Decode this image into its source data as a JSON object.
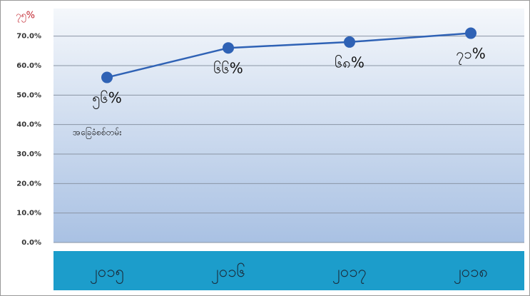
{
  "chart_data": {
    "type": "line",
    "annotation_top": "၇၅%",
    "annotation_note": "အခြေခံစစ်တမ်း",
    "categories": [
      "၂၀၁၅",
      "၂၀၁၆",
      "၂၀၁၇",
      "၂၀၁၈"
    ],
    "series": [
      {
        "color": "#2f62b5",
        "values": [
          56,
          66,
          68,
          71
        ],
        "value_labels": [
          "၅၆%",
          "၆၆%",
          "၆၈%",
          "၇၁%"
        ]
      }
    ],
    "ylim": [
      0,
      75
    ],
    "yticks": [
      {
        "value": 0,
        "label": "0.0%"
      },
      {
        "value": 10,
        "label": "10.0%"
      },
      {
        "value": 20,
        "label": "20.0%"
      },
      {
        "value": 30,
        "label": "30.0%"
      },
      {
        "value": 40,
        "label": "40.0%"
      },
      {
        "value": 50,
        "label": "50.0%"
      },
      {
        "value": 60,
        "label": "60.0%"
      },
      {
        "value": 70,
        "label": "70.0%"
      }
    ],
    "grid": true
  }
}
